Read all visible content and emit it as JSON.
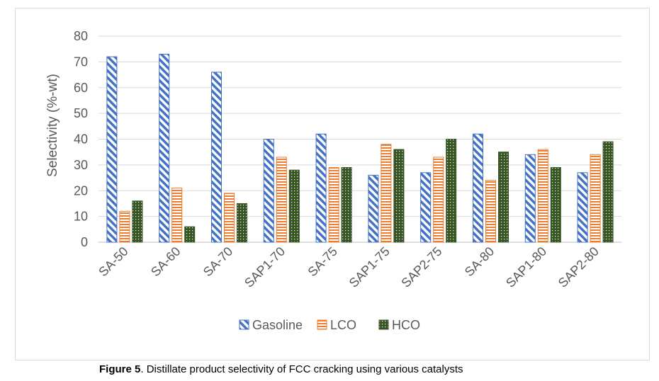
{
  "chart_data": {
    "type": "bar",
    "title": "",
    "xlabel": "",
    "ylabel": "Selectivity (%-wt)",
    "ylim": [
      0,
      80
    ],
    "yticks": [
      0,
      10,
      20,
      30,
      40,
      50,
      60,
      70,
      80
    ],
    "grid": true,
    "legend_position": "bottom",
    "categories": [
      "SA-50",
      "SA-60",
      "SA-70",
      "SAP1-70",
      "SA-75",
      "SAP1-75",
      "SAP2-75",
      "SA-80",
      "SAP1-80",
      "SAP2-80"
    ],
    "series": [
      {
        "name": "Gasoline",
        "color": "#4472c4",
        "pattern": "diagonal-stripes",
        "values": [
          72,
          73,
          66,
          40,
          42,
          26,
          27,
          42,
          34,
          27
        ]
      },
      {
        "name": "LCO",
        "color": "#ed7d31",
        "pattern": "horizontal-stripes",
        "values": [
          12,
          21,
          19,
          33,
          29,
          38,
          33,
          24,
          36,
          34
        ]
      },
      {
        "name": "HCO",
        "color": "#375623",
        "pattern": "dots",
        "values": [
          16,
          6,
          15,
          28,
          29,
          36,
          40,
          35,
          29,
          39
        ]
      }
    ]
  },
  "caption": {
    "prefix": "Figure 5",
    "text": ". Distillate product selectivity of FCC cracking using various catalysts"
  }
}
